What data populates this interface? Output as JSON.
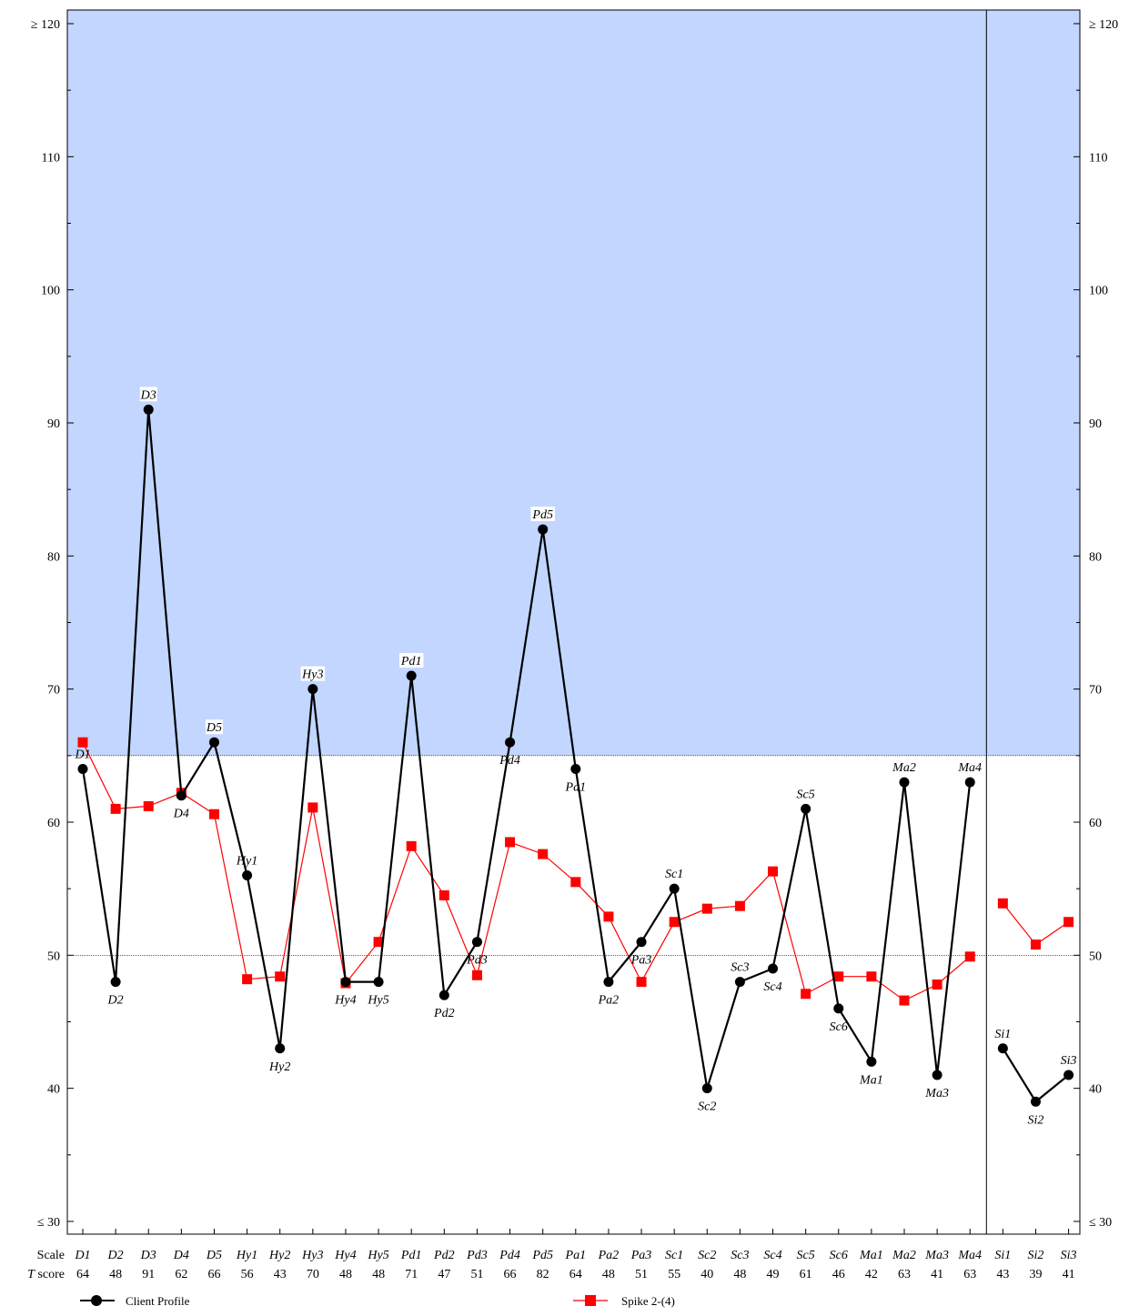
{
  "chart_data": {
    "type": "line",
    "scales": [
      "D1",
      "D2",
      "D3",
      "D4",
      "D5",
      "Hy1",
      "Hy2",
      "Hy3",
      "Hy4",
      "Hy5",
      "Pd1",
      "Pd2",
      "Pd3",
      "Pd4",
      "Pd5",
      "Pa1",
      "Pa2",
      "Pa3",
      "Sc1",
      "Sc2",
      "Sc3",
      "Sc4",
      "Sc5",
      "Sc6",
      "Ma1",
      "Ma2",
      "Ma3",
      "Ma4",
      "Si1",
      "Si2",
      "Si3"
    ],
    "t_scores": [
      "64",
      "48",
      "91",
      "62",
      "66",
      "56",
      "43",
      "70",
      "48",
      "48",
      "71",
      "47",
      "51",
      "66",
      "82",
      "64",
      "48",
      "51",
      "55",
      "40",
      "48",
      "49",
      "61",
      "46",
      "42",
      "63",
      "41",
      "63",
      "43",
      "39",
      "41"
    ],
    "series": [
      {
        "name": "Client Profile",
        "color": "#000000",
        "marker": "circle",
        "values": [
          64,
          48,
          91,
          62,
          66,
          56,
          43,
          70,
          48,
          48,
          71,
          47,
          51,
          66,
          82,
          64,
          48,
          51,
          55,
          40,
          48,
          49,
          61,
          46,
          42,
          63,
          41,
          63,
          43,
          39,
          41
        ]
      },
      {
        "name": "Spike 2-(4)",
        "color": "#ff0000",
        "marker": "square",
        "values": [
          66,
          61,
          61.2,
          62.2,
          60.6,
          48.2,
          48.4,
          61.1,
          47.9,
          51,
          58.2,
          54.5,
          48.5,
          58.5,
          57.6,
          55.5,
          52.9,
          48,
          52.5,
          53.5,
          53.7,
          56.3,
          47.1,
          48.4,
          48.4,
          46.6,
          47.8,
          49.9,
          53.9,
          50.8,
          52.5
        ]
      }
    ],
    "y_range": [
      30,
      120
    ],
    "y_ticks": [
      30,
      40,
      50,
      60,
      70,
      80,
      90,
      100,
      110,
      120
    ],
    "y_tick_labels": [
      "≤ 30",
      "40",
      "50",
      "60",
      "70",
      "80",
      "90",
      "100",
      "110",
      "≥ 120"
    ],
    "shaded_region_from": 65,
    "shaded_color": "#c2d6ff",
    "reference_line": 50,
    "group_divider_after": "Ma4",
    "row_labels": {
      "scale": "Scale",
      "t_score_prefix": "T",
      "t_score_suffix": " score"
    },
    "label_placement": [
      "above",
      "below",
      "above",
      "below",
      "above",
      "above",
      "below",
      "above",
      "below",
      "below",
      "above",
      "below",
      "below",
      "below",
      "above",
      "below",
      "below",
      "below",
      "above",
      "below",
      "above",
      "below",
      "above",
      "below",
      "below",
      "above",
      "below",
      "above",
      "above",
      "below",
      "above"
    ],
    "label_background": [
      false,
      false,
      true,
      false,
      true,
      false,
      false,
      true,
      false,
      false,
      true,
      false,
      false,
      false,
      true,
      false,
      false,
      false,
      false,
      false,
      false,
      false,
      false,
      false,
      false,
      false,
      false,
      false,
      false,
      false,
      false
    ],
    "legend_position": "bottom"
  }
}
